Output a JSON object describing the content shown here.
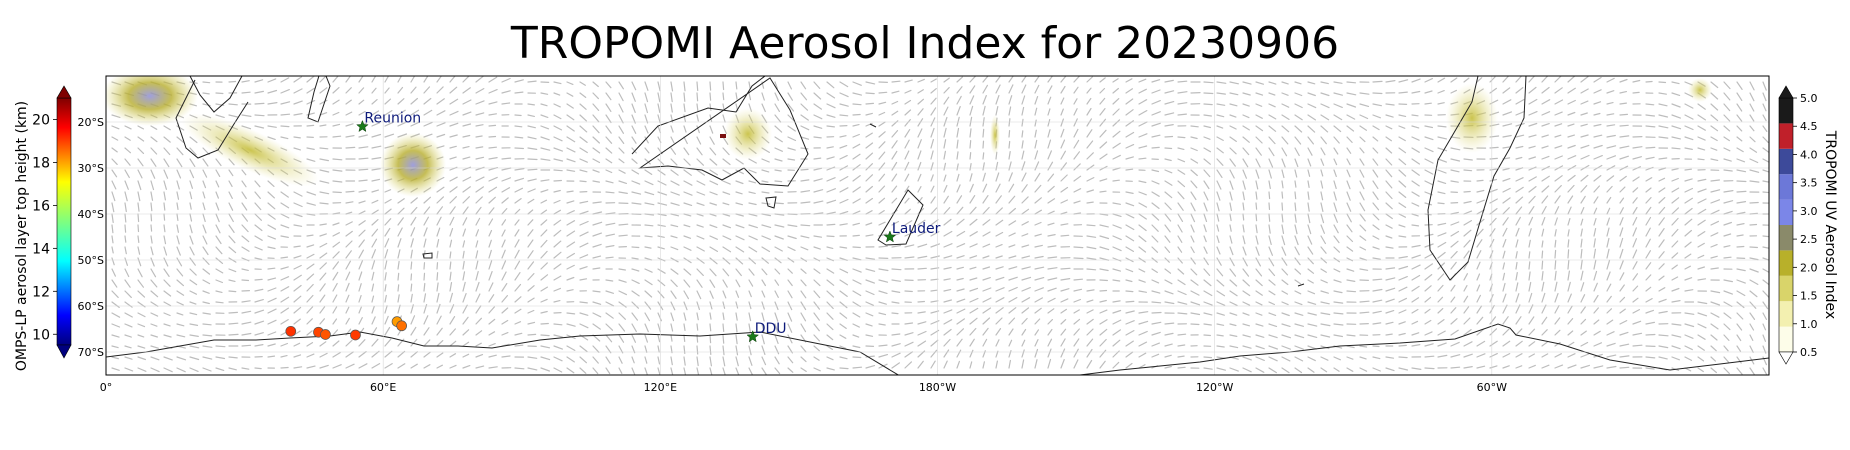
{
  "title": "TROPOMI Aerosol Index for 20230906",
  "left_colorbar": {
    "label": "OMPS-LP aerosol layer top height (km)",
    "ticks": [
      "10",
      "12",
      "14",
      "16",
      "18",
      "20"
    ],
    "range": [
      9.5,
      21
    ],
    "colormap": "jet"
  },
  "right_colorbar": {
    "label": "TROPOMI UV Aerosol Index",
    "ticks": [
      "0.5",
      "1.0",
      "1.5",
      "2.0",
      "2.5",
      "3.0",
      "3.5",
      "4.0",
      "4.5",
      "5.0"
    ],
    "range": [
      0.5,
      5.0
    ],
    "colors": [
      "#fdfde9",
      "#f3f0b0",
      "#d9d46a",
      "#b8b02a",
      "#8a8a6a",
      "#7b86e8",
      "#6c78d8",
      "#3d4a9a",
      "#c0202a",
      "#1a1a1a"
    ]
  },
  "map": {
    "lon_ticks": [
      "0°",
      "60°E",
      "120°E",
      "180°W",
      "120°W",
      "60°W"
    ],
    "lat_ticks": [
      "20°S",
      "30°S",
      "40°S",
      "50°S",
      "60°S",
      "70°S"
    ],
    "lon_range": [
      0,
      360
    ],
    "lat_range": [
      -75,
      -10
    ],
    "wind_vectors_color": "#bdbdbd",
    "coastline_color": "#222222"
  },
  "sites": [
    {
      "name": "Reunion",
      "lon": 55.5,
      "lat": -21
    },
    {
      "name": "Lauder",
      "lon": 169.7,
      "lat": -45
    },
    {
      "name": "DDU",
      "lon": 140,
      "lat": -66.7
    }
  ],
  "omps_points": [
    {
      "lon": 40,
      "lat": -65.5,
      "height": 19.0
    },
    {
      "lon": 46,
      "lat": -65.7,
      "height": 18.8
    },
    {
      "lon": 47.5,
      "lat": -66.2,
      "height": 18.6
    },
    {
      "lon": 54,
      "lat": -66.3,
      "height": 18.9
    },
    {
      "lon": 63,
      "lat": -63.4,
      "height": 17.8
    },
    {
      "lon": 64,
      "lat": -64.3,
      "height": 18.3
    }
  ]
}
